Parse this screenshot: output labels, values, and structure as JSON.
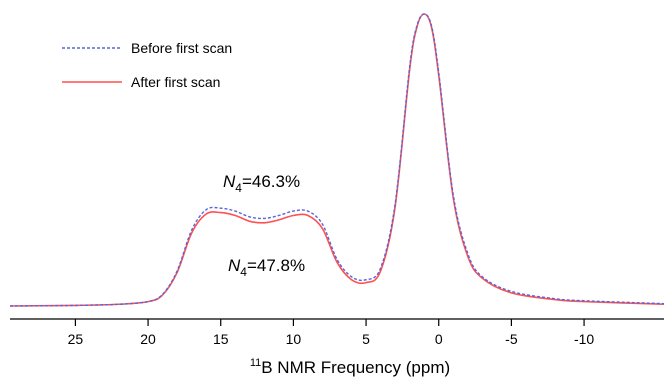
{
  "chart_data": {
    "type": "line",
    "title": "",
    "xlabel_superscript": "11",
    "xlabel_main": "B NMR Frequency (ppm)",
    "ylabel": "",
    "xlim": [
      29.5,
      -15.5
    ],
    "ylim": [
      0,
      1
    ],
    "x_reversed": true,
    "grid": false,
    "legend_position": "top-left",
    "xticks": [
      25,
      20,
      15,
      10,
      5,
      0,
      -5,
      -10
    ],
    "xtick_labels": [
      "25",
      "20",
      "15",
      "10",
      "5",
      "0",
      "-5",
      "-10"
    ],
    "x": [
      29.5,
      25,
      22,
      20,
      19,
      18,
      17,
      16,
      15,
      14,
      13,
      12,
      11,
      10,
      9,
      8,
      7,
      6,
      5,
      4,
      3,
      2,
      1.5,
      1,
      0.5,
      0,
      -1,
      -2,
      -3,
      -5,
      -8,
      -10,
      -15.5
    ],
    "series": [
      {
        "name": "Before first scan",
        "style": "dashed",
        "color": "#5566dd",
        "values": [
          0.0,
          0.002,
          0.006,
          0.015,
          0.04,
          0.12,
          0.26,
          0.33,
          0.335,
          0.325,
          0.305,
          0.3,
          0.31,
          0.325,
          0.325,
          0.28,
          0.16,
          0.1,
          0.09,
          0.13,
          0.35,
          0.82,
          0.96,
          1.0,
          0.96,
          0.8,
          0.38,
          0.18,
          0.1,
          0.05,
          0.025,
          0.018,
          0.008
        ]
      },
      {
        "name": "After first scan",
        "style": "solid",
        "color": "#ff5050",
        "values": [
          0.0,
          0.002,
          0.006,
          0.015,
          0.038,
          0.115,
          0.25,
          0.315,
          0.32,
          0.31,
          0.29,
          0.285,
          0.295,
          0.31,
          0.31,
          0.265,
          0.15,
          0.09,
          0.08,
          0.12,
          0.34,
          0.81,
          0.955,
          1.0,
          0.955,
          0.79,
          0.37,
          0.17,
          0.095,
          0.045,
          0.022,
          0.015,
          0.006
        ]
      }
    ],
    "annotations": [
      {
        "italic": "N",
        "subscript": "4",
        "text": "=46.3%"
      },
      {
        "italic": "N",
        "subscript": "4",
        "text": "=47.8%"
      }
    ]
  }
}
